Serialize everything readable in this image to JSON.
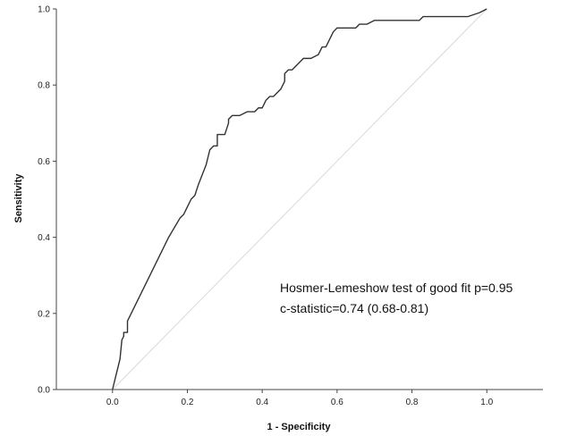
{
  "chart_data": {
    "type": "line",
    "xlabel": "1 - Specificity",
    "ylabel": "Sensitivity",
    "xlim": [
      -0.15,
      1.15
    ],
    "ylim": [
      0,
      1
    ],
    "x_ticks": [
      "0.0",
      "0.2",
      "0.4",
      "0.6",
      "0.8",
      "1.0"
    ],
    "y_ticks": [
      "0.0",
      "0.2",
      "0.4",
      "0.6",
      "0.8",
      "1.0"
    ],
    "grid": false,
    "legend": "none",
    "annotations": [
      "Hosmer-Lemeshow test of good fit p=0.95",
      "c-statistic=0.74 (0.68-0.81)"
    ],
    "series": [
      {
        "color": "#333333",
        "x": [
          0.0,
          0.02,
          0.025,
          0.03,
          0.03,
          0.04,
          0.04,
          0.05,
          0.1,
          0.15,
          0.18,
          0.19,
          0.2,
          0.21,
          0.22,
          0.23,
          0.25,
          0.26,
          0.27,
          0.28,
          0.28,
          0.29,
          0.3,
          0.31,
          0.31,
          0.32,
          0.33,
          0.34,
          0.36,
          0.37,
          0.38,
          0.39,
          0.4,
          0.41,
          0.42,
          0.43,
          0.44,
          0.45,
          0.46,
          0.46,
          0.47,
          0.48,
          0.5,
          0.51,
          0.52,
          0.53,
          0.55,
          0.56,
          0.57,
          0.58,
          0.59,
          0.6,
          0.61,
          0.62,
          0.64,
          0.65,
          0.66,
          0.68,
          0.7,
          0.72,
          0.75,
          0.8,
          0.82,
          0.83,
          0.85,
          0.9,
          0.95,
          0.98,
          1.0
        ],
        "y": [
          0.0,
          0.08,
          0.13,
          0.14,
          0.15,
          0.15,
          0.18,
          0.2,
          0.3,
          0.4,
          0.45,
          0.46,
          0.48,
          0.5,
          0.51,
          0.54,
          0.59,
          0.63,
          0.64,
          0.64,
          0.67,
          0.67,
          0.67,
          0.7,
          0.71,
          0.72,
          0.72,
          0.72,
          0.73,
          0.73,
          0.73,
          0.74,
          0.74,
          0.76,
          0.77,
          0.77,
          0.78,
          0.79,
          0.81,
          0.83,
          0.84,
          0.84,
          0.86,
          0.87,
          0.87,
          0.87,
          0.88,
          0.9,
          0.9,
          0.92,
          0.94,
          0.95,
          0.95,
          0.95,
          0.95,
          0.95,
          0.96,
          0.96,
          0.97,
          0.97,
          0.97,
          0.97,
          0.97,
          0.98,
          0.98,
          0.98,
          0.98,
          0.99,
          1.0
        ]
      },
      {
        "color": "#d9d9d9",
        "x": [
          0,
          1
        ],
        "y": [
          0,
          1
        ]
      }
    ]
  }
}
